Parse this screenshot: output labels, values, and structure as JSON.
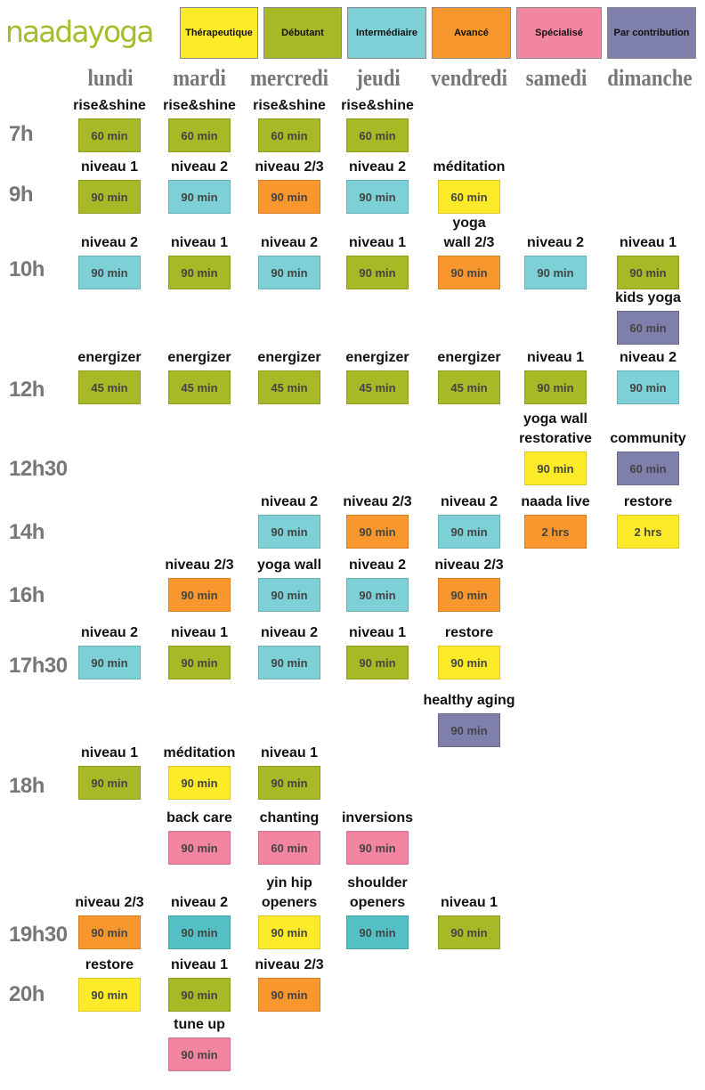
{
  "logo": "naadayoga",
  "colors": {
    "therapeutique": "#fdeb2a",
    "debutant": "#a7b927",
    "intermediaire": "#7dd0d6",
    "avance": "#f7972d",
    "specialise": "#f286a1",
    "contribution": "#7f7fab",
    "teal": "#55bfc6"
  },
  "legend": [
    "Thérapeutique",
    "Débutant",
    "Intermédiaire",
    "Avancé",
    "Spécialisé",
    "Par contribution"
  ],
  "days": [
    "lundi",
    "mardi",
    "mercredi",
    "jeudi",
    "vendredi",
    "samedi",
    "dimanche"
  ],
  "times": [
    "7h",
    "9h",
    "10h",
    "12h",
    "12h30",
    "14h",
    "16h",
    "17h30",
    "18h",
    "19h30",
    "20h"
  ],
  "classes": [
    {
      "name": "rise&shine",
      "dur": "60 min"
    },
    {
      "name": "rise&shine",
      "dur": "60 min"
    },
    {
      "name": "rise&shine",
      "dur": "60 min"
    },
    {
      "name": "rise&shine",
      "dur": "60 min"
    },
    {
      "name": "niveau 1",
      "dur": "90 min"
    },
    {
      "name": "niveau 2",
      "dur": "90 min"
    },
    {
      "name": "niveau 2/3",
      "dur": "90 min"
    },
    {
      "name": "niveau 2",
      "dur": "90 min"
    },
    {
      "name": "méditation",
      "dur": "60 min"
    },
    {
      "name": "niveau 2",
      "dur": "90 min"
    },
    {
      "name": "niveau 1",
      "dur": "90 min"
    },
    {
      "name": "niveau 2",
      "dur": "90 min"
    },
    {
      "name": "niveau 1",
      "dur": "90 min"
    },
    {
      "name": "yoga\nwall 2/3",
      "dur": "90 min"
    },
    {
      "name": "niveau 2",
      "dur": "90 min"
    },
    {
      "name": "niveau 1",
      "dur": "90 min"
    },
    {
      "name": "kids yoga",
      "dur": "60 min"
    },
    {
      "name": "energizer",
      "dur": "45 min"
    },
    {
      "name": "energizer",
      "dur": "45 min"
    },
    {
      "name": "energizer",
      "dur": "45 min"
    },
    {
      "name": "energizer",
      "dur": "45 min"
    },
    {
      "name": "energizer",
      "dur": "45 min"
    },
    {
      "name": "niveau 1",
      "dur": "90 min"
    },
    {
      "name": "niveau 2",
      "dur": "90 min"
    },
    {
      "name": "yoga wall\nrestorative",
      "dur": "90 min"
    },
    {
      "name": "community",
      "dur": "60 min"
    },
    {
      "name": "niveau 2",
      "dur": "90 min"
    },
    {
      "name": "niveau 2/3",
      "dur": "90 min"
    },
    {
      "name": "niveau 2",
      "dur": "90 min"
    },
    {
      "name": "naada live",
      "dur": "2 hrs"
    },
    {
      "name": "restore",
      "dur": "2 hrs"
    },
    {
      "name": "niveau 2/3",
      "dur": "90 min"
    },
    {
      "name": "yoga wall",
      "dur": "90 min"
    },
    {
      "name": "niveau 2",
      "dur": "90 min"
    },
    {
      "name": "niveau 2/3",
      "dur": "90 min"
    },
    {
      "name": "niveau 2",
      "dur": "90 min"
    },
    {
      "name": "niveau 1",
      "dur": "90 min"
    },
    {
      "name": "niveau 2",
      "dur": "90 min"
    },
    {
      "name": "niveau 1",
      "dur": "90 min"
    },
    {
      "name": "restore",
      "dur": "90 min"
    },
    {
      "name": "healthy aging",
      "dur": "90 min"
    },
    {
      "name": "niveau 1",
      "dur": "90 min"
    },
    {
      "name": "méditation",
      "dur": "90 min"
    },
    {
      "name": "niveau 1",
      "dur": "90 min"
    },
    {
      "name": "back care",
      "dur": "90 min"
    },
    {
      "name": "chanting",
      "dur": "60 min"
    },
    {
      "name": "inversions",
      "dur": "90 min"
    },
    {
      "name": "niveau 2/3",
      "dur": "90 min"
    },
    {
      "name": "niveau 2",
      "dur": "90 min"
    },
    {
      "name": "yin hip\nopeners",
      "dur": "90 min"
    },
    {
      "name": "shoulder\nopeners",
      "dur": "90 min"
    },
    {
      "name": "niveau 1",
      "dur": "90 min"
    },
    {
      "name": "restore",
      "dur": "90 min"
    },
    {
      "name": "niveau 1",
      "dur": "90 min"
    },
    {
      "name": "niveau 2/3",
      "dur": "90 min"
    },
    {
      "name": "tune up",
      "dur": "90 min"
    }
  ]
}
